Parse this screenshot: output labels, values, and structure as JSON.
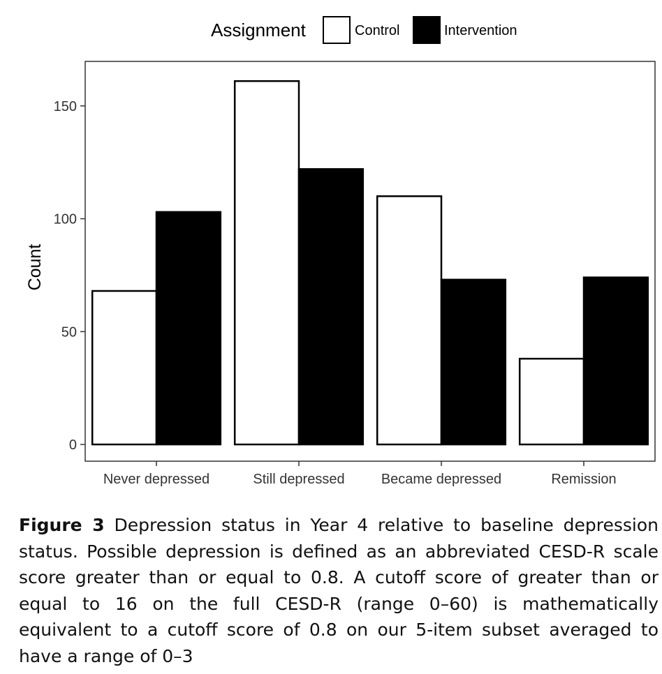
{
  "chart_data": {
    "type": "bar",
    "categories": [
      "Never depressed",
      "Still depressed",
      "Became depressed",
      "Remission"
    ],
    "series": [
      {
        "name": "Control",
        "values": [
          68,
          161,
          110,
          38
        ],
        "fill": "#ffffff"
      },
      {
        "name": "Intervention",
        "values": [
          103,
          122,
          73,
          74
        ],
        "fill": "#000000"
      }
    ],
    "legend_title": "Assignment",
    "legend_position": "top",
    "ylabel": "Count",
    "xlabel": "",
    "ylim": [
      0,
      170
    ],
    "yticks": [
      0,
      50,
      100,
      150
    ],
    "grid": false
  },
  "caption": {
    "label": "Figure 3",
    "text": " Depression status in Year 4 relative to baseline depression status. Possible depression is defined as an abbreviated CESD-R scale score greater than or equal to 0.8. A cutoff score of greater than or equal to 16 on the full CESD-R (range 0–60) is mathematically equivalent to a cutoff score of 0.8 on our 5-item subset averaged to have a range of 0–3"
  }
}
